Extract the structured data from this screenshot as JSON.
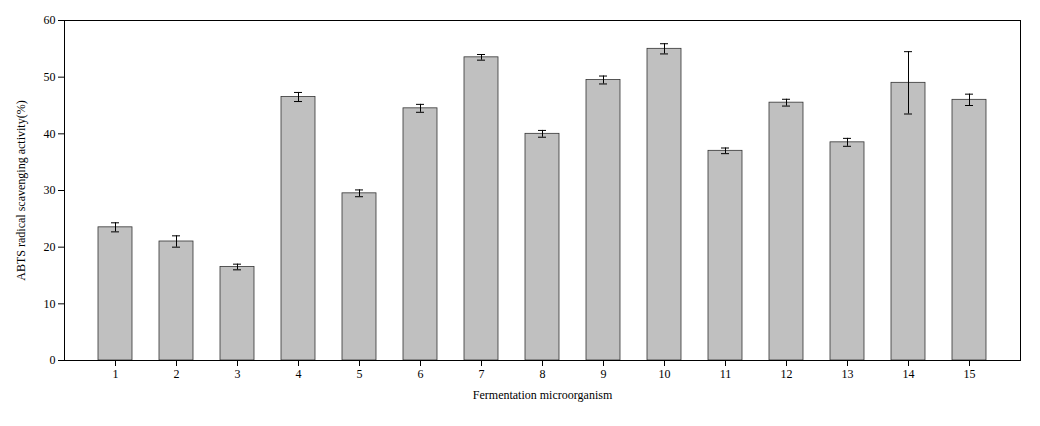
{
  "chart_data": {
    "type": "bar",
    "xlabel": "Fermentation microorganism",
    "ylabel": "ABTS radical scavenging activity(%)",
    "categories": [
      "1",
      "2",
      "3",
      "4",
      "5",
      "6",
      "7",
      "8",
      "9",
      "10",
      "11",
      "12",
      "13",
      "14",
      "15"
    ],
    "values": [
      23.5,
      21.0,
      16.5,
      46.5,
      29.5,
      44.5,
      53.5,
      40.0,
      49.5,
      55.0,
      37.0,
      45.5,
      38.5,
      49.0,
      46.0
    ],
    "errors": [
      0.8,
      1.0,
      0.5,
      0.8,
      0.6,
      0.7,
      0.5,
      0.6,
      0.7,
      0.9,
      0.5,
      0.6,
      0.7,
      5.5,
      1.0
    ],
    "color": "#c0c0c0",
    "ylim": [
      0,
      60
    ],
    "yticks": [
      0,
      10,
      20,
      30,
      40,
      50,
      60
    ],
    "grid": false
  }
}
